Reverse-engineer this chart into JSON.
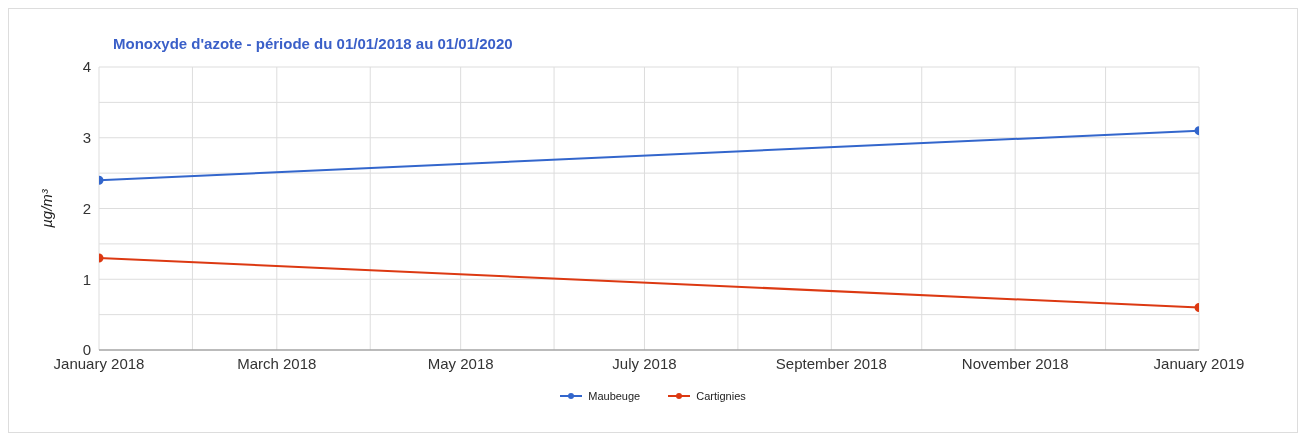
{
  "chart_data": {
    "type": "line",
    "title": "Monoxyde d'azote - période du 01/01/2018 au 01/01/2020",
    "ylabel": "µg/m³",
    "series": [
      {
        "name": "Maubeuge",
        "color": "#3366cc",
        "x": [
          "2018-01-01",
          "2019-01-01"
        ],
        "values": [
          2.4,
          3.1
        ]
      },
      {
        "name": "Cartignies",
        "color": "#dc3912",
        "x": [
          "2018-01-01",
          "2019-01-01"
        ],
        "values": [
          1.3,
          0.6
        ]
      }
    ],
    "xlim": [
      "2018-01-01",
      "2019-01-01"
    ],
    "xticks": [
      {
        "value": "2018-01-01",
        "label": "January 2018"
      },
      {
        "value": "2018-02-01",
        "label": null
      },
      {
        "value": "2018-03-01",
        "label": "March 2018"
      },
      {
        "value": "2018-04-01",
        "label": null
      },
      {
        "value": "2018-05-01",
        "label": "May 2018"
      },
      {
        "value": "2018-06-01",
        "label": null
      },
      {
        "value": "2018-07-01",
        "label": "July 2018"
      },
      {
        "value": "2018-08-01",
        "label": null
      },
      {
        "value": "2018-09-01",
        "label": "September 2018"
      },
      {
        "value": "2018-10-01",
        "label": null
      },
      {
        "value": "2018-11-01",
        "label": "November 2018"
      },
      {
        "value": "2018-12-01",
        "label": null
      },
      {
        "value": "2019-01-01",
        "label": "January 2019"
      }
    ],
    "ylim": [
      0,
      4
    ],
    "yticks": [
      0,
      {
        "value": 0.5,
        "label": null
      },
      1,
      {
        "value": 1.5,
        "label": null
      },
      2,
      {
        "value": 2.5,
        "label": null
      },
      3,
      {
        "value": 3.5,
        "label": null
      },
      4
    ],
    "grid": true,
    "legend": "bottom",
    "marker": "circle",
    "line_style": "solid"
  }
}
